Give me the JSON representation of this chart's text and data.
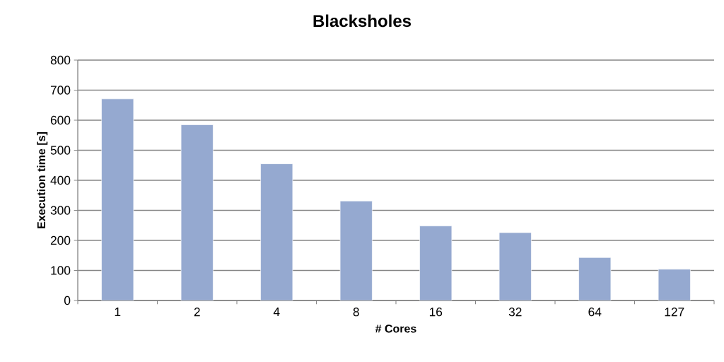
{
  "chart_data": {
    "type": "bar",
    "title": "Blacksholes",
    "xlabel": "# Cores",
    "ylabel": "Execution time [s]",
    "categories": [
      "1",
      "2",
      "4",
      "8",
      "16",
      "32",
      "64",
      "127"
    ],
    "values": [
      671,
      585,
      455,
      331,
      248,
      226,
      143,
      104
    ],
    "color": "#95a9d0",
    "ylim": [
      0,
      800
    ],
    "yticks": [
      0,
      100,
      200,
      300,
      400,
      500,
      600,
      700,
      800
    ],
    "grid": "y"
  }
}
